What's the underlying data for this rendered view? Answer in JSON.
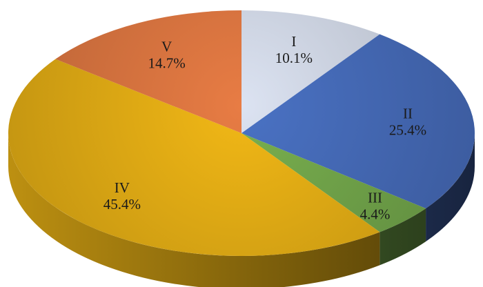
{
  "chart_data": {
    "type": "pie",
    "style": "3d",
    "slices": [
      {
        "label": "I",
        "value": 10.1,
        "value_label": "10.1%",
        "color": "#dce3f2"
      },
      {
        "label": "II",
        "value": 25.4,
        "value_label": "25.4%",
        "color": "#4a72c4"
      },
      {
        "label": "III",
        "value": 4.4,
        "value_label": "4.4%",
        "color": "#79b04f"
      },
      {
        "label": "IV",
        "value": 45.4,
        "value_label": "45.4%",
        "color": "#f2b816"
      },
      {
        "label": "V",
        "value": 14.7,
        "value_label": "14.7%",
        "color": "#e87c44"
      }
    ],
    "start_angle": "12 o'clock",
    "direction": "clockwise"
  }
}
